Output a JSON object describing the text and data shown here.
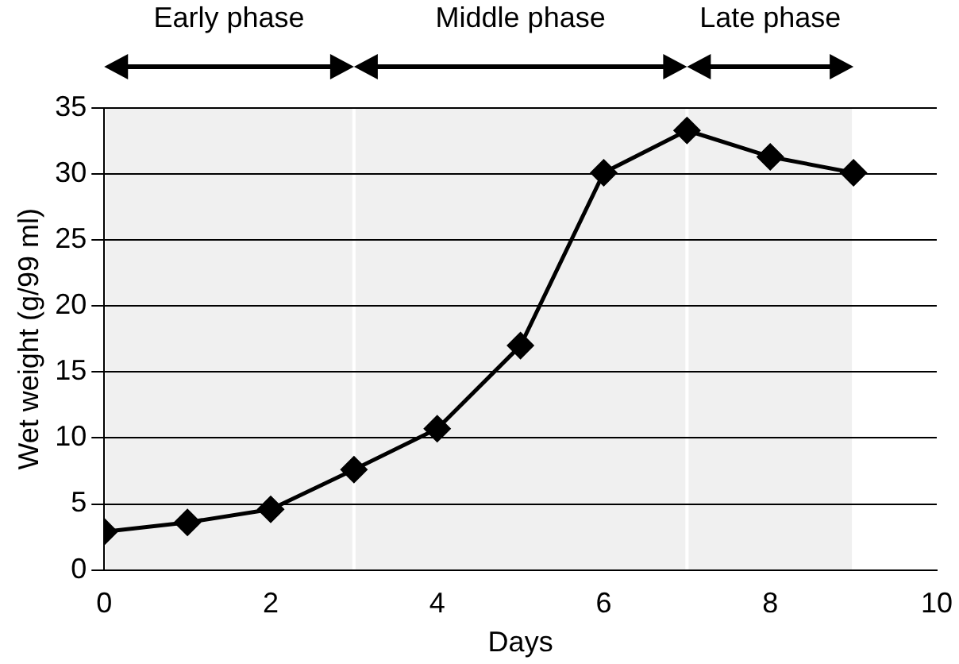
{
  "chart_data": {
    "type": "line",
    "xlabel": "Days",
    "ylabel": "Wet weight (g/99 ml)",
    "x": [
      0,
      1,
      2,
      3,
      4,
      5,
      6,
      7,
      8,
      9
    ],
    "series": [
      {
        "color": "#000000",
        "values": [
          2.9,
          3.6,
          4.6,
          7.6,
          10.7,
          17.0,
          30.1,
          33.3,
          31.3,
          30.1
        ]
      }
    ],
    "xlim": [
      0,
      10
    ],
    "xticks": [
      0,
      2,
      4,
      6,
      8,
      10
    ],
    "ylim": [
      0,
      35
    ],
    "yticks": [
      0,
      5,
      10,
      15,
      20,
      25,
      30,
      35
    ],
    "grid": "y",
    "legend": false,
    "marker": "diamond",
    "line_style": "solid",
    "bands": [
      {
        "axis": "x",
        "from": 0,
        "to": 3,
        "label": "Early phase",
        "color": "#000000"
      },
      {
        "axis": "x",
        "from": 3,
        "to": 7,
        "label": "Middle phase",
        "color": "#000000"
      },
      {
        "axis": "x",
        "from": 7,
        "to": 9,
        "label": "Late phase",
        "color": "#000000"
      }
    ]
  }
}
